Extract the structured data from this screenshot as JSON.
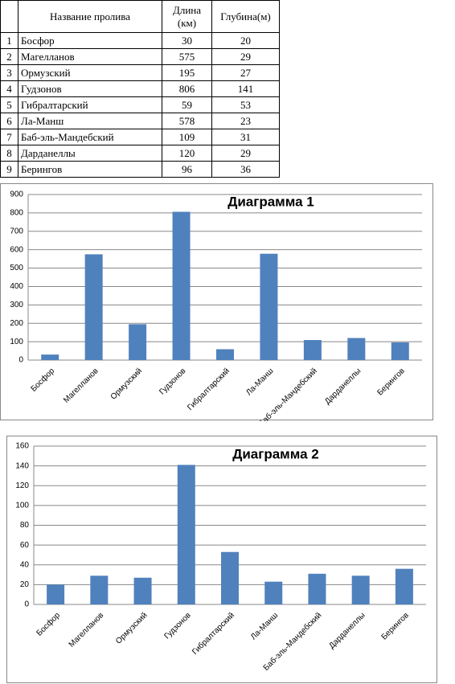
{
  "table": {
    "header": [
      "",
      "Название пролива",
      "Длина (км)",
      "Глубина(м)"
    ],
    "rows": [
      [
        "1",
        "Босфор",
        "30",
        "20"
      ],
      [
        "2",
        "Магелланов",
        "575",
        "29"
      ],
      [
        "3",
        "Ормузский",
        "195",
        "27"
      ],
      [
        "4",
        "Гудзонов",
        "806",
        "141"
      ],
      [
        "5",
        "Гибралтарский",
        "59",
        "53"
      ],
      [
        "6",
        "Ла-Манш",
        "578",
        "23"
      ],
      [
        "7",
        "Баб-эль-Мандебский",
        "109",
        "31"
      ],
      [
        "8",
        "Дарданеллы",
        "120",
        "29"
      ],
      [
        "9",
        "Берингов",
        "96",
        "36"
      ]
    ]
  },
  "chart_data": [
    {
      "type": "bar",
      "title": "Диаграмма 1",
      "categories": [
        "Босфор",
        "Магелланов",
        "Ормузский",
        "Гудзонов",
        "Гибралтарский",
        "Ла-Манш",
        "Баб-эль-Мандебский",
        "Дарданеллы",
        "Берингов"
      ],
      "values": [
        30,
        575,
        195,
        806,
        59,
        578,
        109,
        120,
        96
      ],
      "color": "#4f81bd",
      "ylim": [
        0,
        900
      ],
      "yticks": [
        0,
        100,
        200,
        300,
        400,
        500,
        600,
        700,
        800,
        900
      ],
      "grid": true
    },
    {
      "type": "bar",
      "title": "Диаграмма 2",
      "categories": [
        "Босфор",
        "Магелланов",
        "Ормузский",
        "Гудзонов",
        "Гибралтарский",
        "Ла-Манш",
        "Баб-эль-Мандебский",
        "Дарданеллы",
        "Берингов"
      ],
      "values": [
        20,
        29,
        27,
        141,
        53,
        23,
        31,
        29,
        36
      ],
      "color": "#4f81bd",
      "ylim": [
        0,
        160
      ],
      "yticks": [
        0,
        20,
        40,
        60,
        80,
        100,
        120,
        140,
        160
      ],
      "grid": true
    }
  ]
}
